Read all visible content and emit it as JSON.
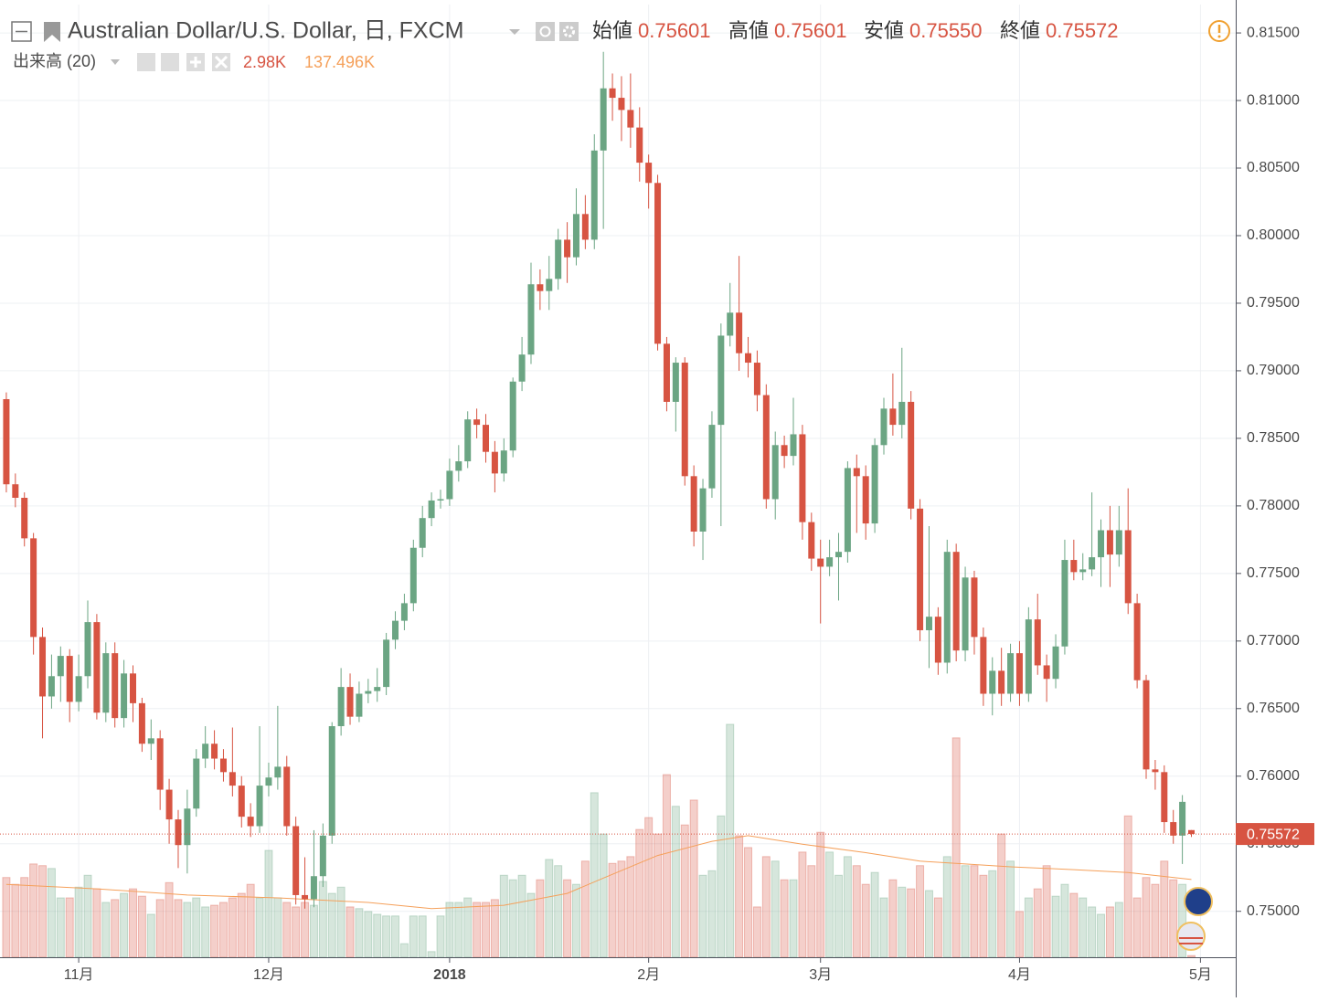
{
  "chart_data": {
    "type": "candlestick",
    "title": "Australian Dollar/U.S. Dollar, 日, FXCM",
    "ohlc_names": [
      "始値",
      "高値",
      "安値",
      "終値"
    ],
    "up_color": "#6ba583",
    "down_color": "#d75442",
    "ohlc": [
      [
        0.7879,
        0.7884,
        0.781,
        0.7816
      ],
      [
        0.7816,
        0.7824,
        0.7799,
        0.7806
      ],
      [
        0.7806,
        0.781,
        0.777,
        0.7776
      ],
      [
        0.7776,
        0.778,
        0.769,
        0.7703
      ],
      [
        0.7703,
        0.771,
        0.7628,
        0.7659
      ],
      [
        0.7659,
        0.769,
        0.765,
        0.7674
      ],
      [
        0.7674,
        0.7696,
        0.7655,
        0.7689
      ],
      [
        0.7689,
        0.7694,
        0.764,
        0.7655
      ],
      [
        0.7655,
        0.769,
        0.7648,
        0.7674
      ],
      [
        0.7674,
        0.773,
        0.7665,
        0.7714
      ],
      [
        0.7714,
        0.772,
        0.7642,
        0.7647
      ],
      [
        0.7647,
        0.7699,
        0.764,
        0.7691
      ],
      [
        0.7691,
        0.7699,
        0.7636,
        0.7643
      ],
      [
        0.7643,
        0.7686,
        0.7636,
        0.7676
      ],
      [
        0.7676,
        0.7682,
        0.764,
        0.7654
      ],
      [
        0.7654,
        0.7658,
        0.7618,
        0.7624
      ],
      [
        0.7624,
        0.7642,
        0.7612,
        0.7628
      ],
      [
        0.7628,
        0.7634,
        0.7575,
        0.759
      ],
      [
        0.759,
        0.7598,
        0.755,
        0.7568
      ],
      [
        0.7568,
        0.7575,
        0.7532,
        0.7549
      ],
      [
        0.7549,
        0.759,
        0.7528,
        0.7576
      ],
      [
        0.7576,
        0.762,
        0.757,
        0.7613
      ],
      [
        0.7613,
        0.7637,
        0.7606,
        0.7624
      ],
      [
        0.7624,
        0.7634,
        0.7605,
        0.7613
      ],
      [
        0.7613,
        0.762,
        0.7596,
        0.7603
      ],
      [
        0.7603,
        0.7636,
        0.7585,
        0.7593
      ],
      [
        0.7593,
        0.76,
        0.7562,
        0.757
      ],
      [
        0.757,
        0.758,
        0.7555,
        0.7563
      ],
      [
        0.7563,
        0.7637,
        0.7558,
        0.7593
      ],
      [
        0.7593,
        0.761,
        0.7585,
        0.7599
      ],
      [
        0.7599,
        0.7652,
        0.759,
        0.7607
      ],
      [
        0.7607,
        0.7615,
        0.7556,
        0.7563
      ],
      [
        0.7563,
        0.757,
        0.7505,
        0.7512
      ],
      [
        0.7512,
        0.754,
        0.7502,
        0.7509
      ],
      [
        0.7509,
        0.756,
        0.7503,
        0.7526
      ],
      [
        0.7526,
        0.7565,
        0.7518,
        0.7556
      ],
      [
        0.7556,
        0.764,
        0.755,
        0.7637
      ],
      [
        0.7637,
        0.768,
        0.763,
        0.7666
      ],
      [
        0.7666,
        0.7676,
        0.7638,
        0.7644
      ],
      [
        0.7644,
        0.767,
        0.764,
        0.7661
      ],
      [
        0.7661,
        0.7672,
        0.7654,
        0.7663
      ],
      [
        0.7663,
        0.768,
        0.7655,
        0.7666
      ],
      [
        0.7666,
        0.7706,
        0.766,
        0.7701
      ],
      [
        0.7701,
        0.7722,
        0.7694,
        0.7715
      ],
      [
        0.7715,
        0.7735,
        0.7708,
        0.7728
      ],
      [
        0.7728,
        0.7775,
        0.7722,
        0.7769
      ],
      [
        0.7769,
        0.78,
        0.7762,
        0.7791
      ],
      [
        0.7791,
        0.781,
        0.7785,
        0.7804
      ],
      [
        0.7804,
        0.7812,
        0.7798,
        0.7805
      ],
      [
        0.7805,
        0.7835,
        0.78,
        0.7826
      ],
      [
        0.7826,
        0.7845,
        0.7818,
        0.7833
      ],
      [
        0.7833,
        0.787,
        0.7828,
        0.7864
      ],
      [
        0.7864,
        0.7872,
        0.785,
        0.786
      ],
      [
        0.786,
        0.7868,
        0.7832,
        0.784
      ],
      [
        0.784,
        0.7848,
        0.781,
        0.7824
      ],
      [
        0.7824,
        0.785,
        0.7818,
        0.7841
      ],
      [
        0.7841,
        0.7895,
        0.7836,
        0.7892
      ],
      [
        0.7892,
        0.7925,
        0.7885,
        0.7912
      ],
      [
        0.7912,
        0.798,
        0.7905,
        0.7964
      ],
      [
        0.7964,
        0.7975,
        0.7945,
        0.7959
      ],
      [
        0.7959,
        0.7985,
        0.7945,
        0.7968
      ],
      [
        0.7968,
        0.8005,
        0.796,
        0.7997
      ],
      [
        0.7997,
        0.801,
        0.7965,
        0.7984
      ],
      [
        0.7984,
        0.8035,
        0.7978,
        0.8016
      ],
      [
        0.8016,
        0.803,
        0.799,
        0.7997
      ],
      [
        0.7997,
        0.8075,
        0.799,
        0.8063
      ],
      [
        0.8063,
        0.8136,
        0.8005,
        0.8109
      ],
      [
        0.8109,
        0.812,
        0.8085,
        0.8102
      ],
      [
        0.8102,
        0.8118,
        0.807,
        0.8093
      ],
      [
        0.8093,
        0.812,
        0.8065,
        0.808
      ],
      [
        0.808,
        0.8095,
        0.804,
        0.8054
      ],
      [
        0.8054,
        0.806,
        0.802,
        0.8039
      ],
      [
        0.8039,
        0.8045,
        0.7915,
        0.792
      ],
      [
        0.792,
        0.7925,
        0.787,
        0.7877
      ],
      [
        0.7877,
        0.791,
        0.7855,
        0.7906
      ],
      [
        0.7906,
        0.791,
        0.7815,
        0.7822
      ],
      [
        0.7822,
        0.783,
        0.777,
        0.7781
      ],
      [
        0.7781,
        0.782,
        0.776,
        0.7813
      ],
      [
        0.7813,
        0.787,
        0.7806,
        0.786
      ],
      [
        0.786,
        0.7935,
        0.7785,
        0.7926
      ],
      [
        0.7926,
        0.7965,
        0.7918,
        0.7943
      ],
      [
        0.7943,
        0.7985,
        0.79,
        0.7913
      ],
      [
        0.7913,
        0.7925,
        0.7895,
        0.7906
      ],
      [
        0.7906,
        0.7915,
        0.787,
        0.7882
      ],
      [
        0.7882,
        0.789,
        0.7798,
        0.7805
      ],
      [
        0.7805,
        0.7855,
        0.779,
        0.7845
      ],
      [
        0.7845,
        0.7852,
        0.7828,
        0.7837
      ],
      [
        0.7837,
        0.788,
        0.783,
        0.7853
      ],
      [
        0.7853,
        0.786,
        0.7775,
        0.7788
      ],
      [
        0.7788,
        0.7795,
        0.7752,
        0.7761
      ],
      [
        0.7761,
        0.7775,
        0.7713,
        0.7755
      ],
      [
        0.7755,
        0.7775,
        0.7748,
        0.7762
      ],
      [
        0.7762,
        0.778,
        0.773,
        0.7766
      ],
      [
        0.7766,
        0.7833,
        0.7758,
        0.7828
      ],
      [
        0.7828,
        0.7838,
        0.778,
        0.7822
      ],
      [
        0.7822,
        0.783,
        0.7775,
        0.7787
      ],
      [
        0.7787,
        0.785,
        0.778,
        0.7845
      ],
      [
        0.7845,
        0.788,
        0.7838,
        0.7872
      ],
      [
        0.7872,
        0.7898,
        0.7852,
        0.786
      ],
      [
        0.786,
        0.7917,
        0.785,
        0.7877
      ],
      [
        0.7877,
        0.7885,
        0.779,
        0.7798
      ],
      [
        0.7798,
        0.7805,
        0.77,
        0.7708
      ],
      [
        0.7708,
        0.7785,
        0.768,
        0.7718
      ],
      [
        0.7718,
        0.7725,
        0.7675,
        0.7684
      ],
      [
        0.7684,
        0.7775,
        0.7676,
        0.7766
      ],
      [
        0.7766,
        0.7772,
        0.7685,
        0.7693
      ],
      [
        0.7693,
        0.7755,
        0.7685,
        0.7747
      ],
      [
        0.7747,
        0.7752,
        0.769,
        0.7703
      ],
      [
        0.7703,
        0.771,
        0.7652,
        0.7661
      ],
      [
        0.7661,
        0.7688,
        0.7645,
        0.7678
      ],
      [
        0.7678,
        0.7695,
        0.7652,
        0.7661
      ],
      [
        0.7661,
        0.7698,
        0.7655,
        0.7691
      ],
      [
        0.7691,
        0.77,
        0.7652,
        0.7661
      ],
      [
        0.7661,
        0.7725,
        0.7655,
        0.7716
      ],
      [
        0.7716,
        0.7735,
        0.7675,
        0.7682
      ],
      [
        0.7682,
        0.769,
        0.7655,
        0.7672
      ],
      [
        0.7672,
        0.7705,
        0.7665,
        0.7696
      ],
      [
        0.7696,
        0.7775,
        0.769,
        0.776
      ],
      [
        0.776,
        0.7775,
        0.7745,
        0.7751
      ],
      [
        0.7751,
        0.7765,
        0.7745,
        0.7753
      ],
      [
        0.7753,
        0.781,
        0.7748,
        0.7762
      ],
      [
        0.7762,
        0.779,
        0.774,
        0.7782
      ],
      [
        0.7782,
        0.78,
        0.774,
        0.7764
      ],
      [
        0.7764,
        0.78,
        0.7755,
        0.7782
      ],
      [
        0.7782,
        0.7813,
        0.772,
        0.7728
      ],
      [
        0.7728,
        0.7735,
        0.7665,
        0.7671
      ],
      [
        0.7671,
        0.7675,
        0.7598,
        0.7605
      ],
      [
        0.7605,
        0.7612,
        0.759,
        0.7603
      ],
      [
        0.7603,
        0.7608,
        0.7558,
        0.7566
      ],
      [
        0.7566,
        0.7575,
        0.755,
        0.7556
      ],
      [
        0.7556,
        0.7586,
        0.7535,
        0.7581
      ],
      [
        0.75601,
        0.75601,
        0.7555,
        0.75572
      ]
    ],
    "ohlc_value_labels": [
      null,
      null,
      null,
      null,
      null,
      null,
      null,
      null,
      null,
      null,
      null,
      null,
      null,
      null,
      null,
      null,
      null,
      null,
      null,
      null,
      null,
      null,
      null,
      null,
      null,
      null,
      null,
      null,
      null,
      null,
      null,
      null,
      null,
      null,
      null,
      null,
      null,
      null,
      null,
      null,
      null,
      null,
      null,
      null,
      null,
      null,
      null,
      null,
      null,
      null,
      null,
      null,
      null,
      null,
      null,
      null,
      null,
      null,
      null,
      null,
      null,
      null,
      null,
      null,
      null,
      null,
      null,
      null,
      null,
      null,
      null,
      null,
      null,
      null,
      null,
      null,
      null,
      null,
      null,
      null,
      null,
      null,
      null,
      null,
      null,
      null,
      null,
      null,
      null,
      null,
      null,
      null,
      null,
      null,
      null,
      null,
      null,
      null,
      null,
      null,
      null,
      null,
      null,
      null,
      null,
      null,
      null,
      null,
      null,
      null,
      null,
      null,
      null,
      null,
      null,
      null,
      null,
      null,
      null,
      null,
      null,
      null,
      null,
      null,
      null,
      null,
      null,
      null,
      null,
      null,
      null,
      [
        "0.75601",
        "0.75601",
        "0.75550",
        "0.75572"
      ]
    ],
    "xlim": [
      -0.7,
      135.9
    ],
    "xticks": [
      {
        "value": 8,
        "label": "11月"
      },
      {
        "value": 29,
        "label": "12月"
      },
      {
        "value": 49,
        "label": "2018"
      },
      {
        "value": 71,
        "label": "2月"
      },
      {
        "value": 90,
        "label": "3月"
      },
      {
        "value": 112,
        "label": "4月"
      },
      {
        "value": 132,
        "label": "5月"
      }
    ],
    "ylim": [
      0.7466,
      0.8171
    ],
    "yticks": [
      {
        "value": 0.75,
        "label": "0.75000"
      },
      {
        "value": 0.755,
        "label": "0.75500"
      },
      {
        "value": 0.76,
        "label": "0.76000"
      },
      {
        "value": 0.765,
        "label": "0.76500"
      },
      {
        "value": 0.77,
        "label": "0.77000"
      },
      {
        "value": 0.775,
        "label": "0.77500"
      },
      {
        "value": 0.78,
        "label": "0.78000"
      },
      {
        "value": 0.785,
        "label": "0.78500"
      },
      {
        "value": 0.79,
        "label": "0.79000"
      },
      {
        "value": 0.795,
        "label": "0.79500"
      },
      {
        "value": 0.8,
        "label": "0.80000"
      },
      {
        "value": 0.805,
        "label": "0.80500"
      },
      {
        "value": 0.81,
        "label": "0.81000"
      },
      {
        "value": 0.815,
        "label": "0.81500"
      }
    ],
    "grid": true,
    "volume": {
      "name": "出来高 (20)",
      "y2lim": [
        0,
        1685
      ],
      "values": [
        141,
        129,
        141,
        165,
        162,
        157,
        105,
        105,
        124,
        145,
        121,
        97,
        102,
        113,
        121,
        108,
        76,
        102,
        132,
        102,
        97,
        105,
        89,
        92,
        97,
        105,
        113,
        129,
        105,
        189,
        105,
        97,
        89,
        97,
        92,
        134,
        113,
        124,
        89,
        86,
        81,
        76,
        73,
        73,
        24,
        73,
        73,
        10,
        73,
        97,
        97,
        105,
        97,
        97,
        102,
        145,
        137,
        145,
        113,
        137,
        173,
        162,
        137,
        129,
        170,
        291,
        218,
        166,
        170,
        178,
        226,
        247,
        218,
        323,
        267,
        234,
        278,
        145,
        153,
        250,
        412,
        215,
        194,
        89,
        178,
        170,
        137,
        137,
        186,
        162,
        221,
        186,
        145,
        178,
        162,
        129,
        150,
        105,
        137,
        124,
        121,
        162,
        118,
        105,
        178,
        388,
        162,
        162,
        145,
        153,
        218,
        170,
        81,
        105,
        121,
        162,
        108,
        129,
        113,
        105,
        89,
        76,
        89,
        97,
        250,
        105,
        141,
        129,
        170,
        137,
        129,
        2.98
      ],
      "value_labels": [
        null,
        null,
        null,
        null,
        null,
        null,
        null,
        null,
        null,
        null,
        null,
        null,
        null,
        null,
        null,
        null,
        null,
        null,
        null,
        null,
        null,
        null,
        null,
        null,
        null,
        null,
        null,
        null,
        null,
        null,
        null,
        null,
        null,
        null,
        null,
        null,
        null,
        null,
        null,
        null,
        null,
        null,
        null,
        null,
        null,
        null,
        null,
        null,
        null,
        null,
        null,
        null,
        null,
        null,
        null,
        null,
        null,
        null,
        null,
        null,
        null,
        null,
        null,
        null,
        null,
        null,
        null,
        null,
        null,
        null,
        null,
        null,
        null,
        null,
        null,
        null,
        null,
        null,
        null,
        null,
        null,
        null,
        null,
        null,
        null,
        null,
        null,
        null,
        null,
        null,
        null,
        null,
        null,
        null,
        null,
        null,
        null,
        null,
        null,
        null,
        null,
        null,
        null,
        null,
        null,
        null,
        null,
        null,
        null,
        null,
        null,
        null,
        null,
        null,
        null,
        null,
        null,
        null,
        null,
        null,
        null,
        null,
        null,
        null,
        null,
        null,
        null,
        null,
        null,
        null,
        null,
        "2.98K"
      ]
    },
    "volume_ma": {
      "color": "#f5a05a",
      "x": [
        0,
        10,
        20,
        30,
        40,
        47,
        55,
        62,
        66,
        72,
        78,
        82,
        88,
        95,
        101,
        106,
        111,
        118,
        124,
        131
      ],
      "values": [
        129,
        121,
        110,
        105,
        97,
        86,
        92,
        113,
        140,
        180,
        205,
        215,
        200,
        185,
        170,
        165,
        160,
        155,
        150,
        137.496
      ],
      "value_labels": [
        null,
        null,
        null,
        null,
        null,
        null,
        null,
        null,
        null,
        null,
        null,
        null,
        null,
        null,
        null,
        null,
        null,
        null,
        null,
        "137.496K"
      ]
    }
  }
}
